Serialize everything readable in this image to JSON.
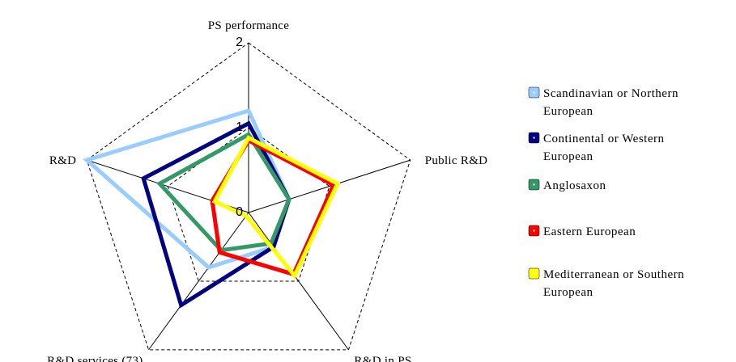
{
  "chart_data": {
    "type": "radar",
    "axes": [
      "PS performance",
      "Public R&D",
      "R&D in PS",
      "R&D services (73)",
      "R&D"
    ],
    "ticks": [
      "0",
      "1",
      "2"
    ],
    "range": [
      0,
      2
    ],
    "gridlines": "dashed",
    "legend_position": "right",
    "series": [
      {
        "name": "Scandinavian or Northern European",
        "color": "#99ccff",
        "values": [
          1.2,
          0.5,
          0.5,
          0.8,
          2.0
        ]
      },
      {
        "name": "Continental or Western European",
        "color": "#000080",
        "values": [
          1.05,
          0.5,
          0.5,
          1.35,
          1.3
        ]
      },
      {
        "name": "Anglosaxon",
        "color": "#339966",
        "values": [
          0.92,
          0.5,
          0.45,
          0.55,
          1.1
        ]
      },
      {
        "name": "Eastern European",
        "color": "#ff0000",
        "values": [
          0.85,
          1.05,
          0.9,
          0.58,
          0.45
        ]
      },
      {
        "name": "Mediterranean or Southern European",
        "color": "#ffff00",
        "values": [
          0.88,
          1.1,
          0.92,
          0.05,
          0.42
        ]
      }
    ]
  }
}
